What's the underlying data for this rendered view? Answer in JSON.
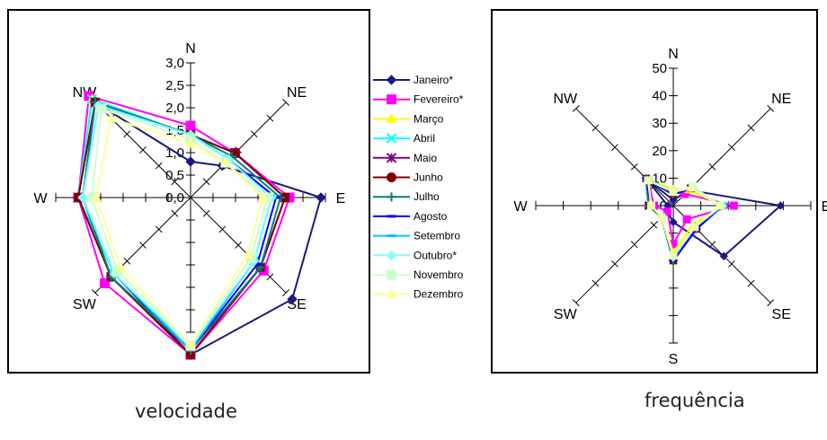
{
  "captions": {
    "left": "velocidade",
    "right": "frequência"
  },
  "directions": [
    "N",
    "NE",
    "E",
    "SE",
    "S",
    "SW",
    "W",
    "NW"
  ],
  "colors": {
    "Janeiro*": "#1a1a80",
    "Fevereiro*": "#ff00ff",
    "Março": "#ffff00",
    "Abril": "#00ffff",
    "Maio": "#800080",
    "Junho": "#800000",
    "Julho": "#008080",
    "Agosto": "#0000ff",
    "Setembro": "#00c0ff",
    "Outubro*": "#80ffff",
    "Novembro": "#ccffcc",
    "Dezembro": "#ffff99"
  },
  "chart_data": [
    {
      "type": "radar",
      "caption": "velocidade",
      "axes": [
        "N",
        "NE",
        "E",
        "SE",
        "S",
        "SW",
        "W",
        "NW"
      ],
      "rlim": [
        0,
        3.0
      ],
      "ticks": [
        "3,0",
        "2,5",
        "2,0",
        "1,5",
        "1,0",
        "0,5",
        "0,0"
      ],
      "tick_values": [
        3.0,
        2.5,
        2.0,
        1.5,
        1.0,
        0.5,
        0.0
      ],
      "legend": "right",
      "series": [
        {
          "name": "Janeiro*",
          "marker": "diamond",
          "values": [
            0.8,
            1.0,
            2.9,
            3.2,
            3.5,
            2.4,
            2.4,
            3.0
          ]
        },
        {
          "name": "Fevereiro*",
          "marker": "square",
          "values": [
            1.6,
            1.4,
            2.2,
            2.3,
            3.5,
            2.7,
            2.5,
            3.2
          ]
        },
        {
          "name": "Março",
          "marker": "triangle",
          "values": [
            1.4,
            1.2,
            1.8,
            2.0,
            3.4,
            2.4,
            2.5,
            3.1
          ]
        },
        {
          "name": "Abril",
          "marker": "x",
          "values": [
            1.4,
            1.2,
            1.8,
            2.0,
            3.4,
            2.4,
            2.5,
            3.1
          ]
        },
        {
          "name": "Maio",
          "marker": "star",
          "values": [
            1.4,
            1.4,
            2.1,
            2.2,
            3.5,
            2.5,
            2.5,
            3.0
          ]
        },
        {
          "name": "Junho",
          "marker": "circle",
          "values": [
            1.4,
            1.4,
            2.1,
            2.2,
            3.5,
            2.5,
            2.5,
            3.0
          ]
        },
        {
          "name": "Julho",
          "marker": "plus",
          "values": [
            1.4,
            1.3,
            2.0,
            2.2,
            3.4,
            2.5,
            2.4,
            3.0
          ]
        },
        {
          "name": "Agosto",
          "marker": "dash",
          "values": [
            1.4,
            1.2,
            1.9,
            2.1,
            3.4,
            2.4,
            2.4,
            2.9
          ]
        },
        {
          "name": "Setembro",
          "marker": "dash",
          "values": [
            1.4,
            1.2,
            1.8,
            2.0,
            3.4,
            2.4,
            2.4,
            2.9
          ]
        },
        {
          "name": "Outubro*",
          "marker": "diamond",
          "values": [
            1.4,
            1.2,
            1.8,
            2.0,
            3.3,
            2.4,
            2.4,
            2.9
          ]
        },
        {
          "name": "Novembro",
          "marker": "square",
          "values": [
            1.3,
            1.1,
            1.7,
            1.9,
            3.3,
            2.3,
            2.2,
            2.8
          ]
        },
        {
          "name": "Dezembro",
          "marker": "triangle",
          "values": [
            1.2,
            1.1,
            1.6,
            1.8,
            3.3,
            2.2,
            2.1,
            2.5
          ]
        }
      ]
    },
    {
      "type": "radar",
      "caption": "frequência",
      "axes": [
        "N",
        "NE",
        "E",
        "SE",
        "S",
        "SW",
        "W",
        "NW"
      ],
      "rlim": [
        0,
        50
      ],
      "ticks": [
        "50",
        "40",
        "30",
        "20",
        "10",
        "0"
      ],
      "tick_values": [
        50,
        40,
        30,
        20,
        10,
        0
      ],
      "series": [
        {
          "name": "Janeiro*",
          "marker": "diamond",
          "values": [
            2,
            8,
            39,
            26,
            6,
            3,
            2,
            14
          ]
        },
        {
          "name": "Fevereiro*",
          "marker": "square",
          "values": [
            5,
            6,
            22,
            7,
            14,
            3,
            7,
            13
          ]
        },
        {
          "name": "Março",
          "marker": "triangle",
          "values": [
            6,
            8,
            18,
            10,
            17,
            6,
            8,
            13
          ]
        },
        {
          "name": "Abril",
          "marker": "x",
          "values": [
            5,
            9,
            18,
            11,
            20,
            6,
            8,
            14
          ]
        },
        {
          "name": "Maio",
          "marker": "star",
          "values": [
            4,
            9,
            17,
            12,
            20,
            6,
            9,
            14
          ]
        },
        {
          "name": "Junho",
          "marker": "circle",
          "values": [
            4,
            9,
            17,
            12,
            20,
            6,
            9,
            14
          ]
        },
        {
          "name": "Julho",
          "marker": "plus",
          "values": [
            4,
            9,
            18,
            12,
            20,
            6,
            9,
            14
          ]
        },
        {
          "name": "Agosto",
          "marker": "dash",
          "values": [
            4,
            9,
            18,
            12,
            20,
            6,
            8,
            14
          ]
        },
        {
          "name": "Setembro",
          "marker": "dash",
          "values": [
            5,
            9,
            18,
            11,
            19,
            6,
            8,
            13
          ]
        },
        {
          "name": "Outubro*",
          "marker": "diamond",
          "values": [
            5,
            9,
            18,
            11,
            19,
            6,
            8,
            13
          ]
        },
        {
          "name": "Novembro",
          "marker": "square",
          "values": [
            5,
            10,
            17,
            11,
            18,
            6,
            8,
            13
          ]
        },
        {
          "name": "Dezembro",
          "marker": "triangle",
          "values": [
            5,
            9,
            17,
            11,
            18,
            6,
            8,
            13
          ]
        }
      ]
    }
  ]
}
